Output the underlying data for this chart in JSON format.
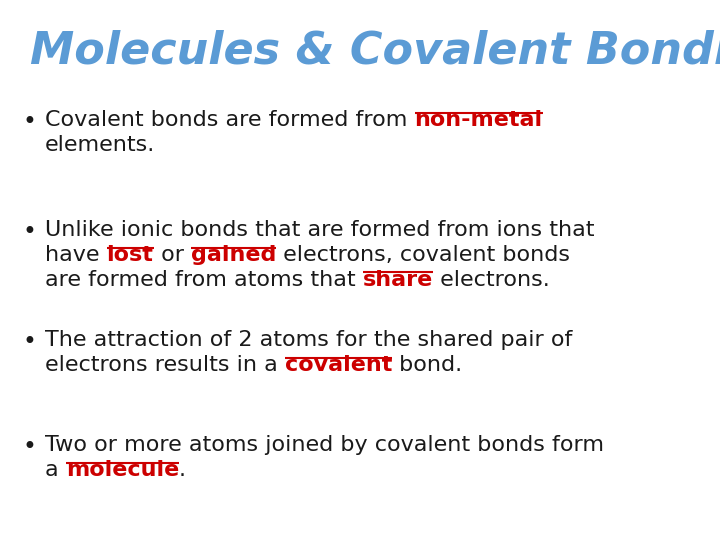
{
  "title": "Molecules & Covalent Bonding",
  "title_color": "#5B9BD5",
  "title_fontsize": 32,
  "background_color": "#ffffff",
  "bullet_color": "#1a1a1a",
  "body_fontsize": 16,
  "bullets": [
    {
      "segments": [
        {
          "text": "Covalent bonds are formed from ",
          "bold": false,
          "underline": false,
          "color": "#1a1a1a"
        },
        {
          "text": "non-metal",
          "bold": true,
          "underline": true,
          "color": "#cc0000"
        },
        {
          "text": "\nelements.",
          "bold": false,
          "underline": false,
          "color": "#1a1a1a"
        }
      ]
    },
    {
      "segments": [
        {
          "text": "Unlike ionic bonds that are formed from ions that\nhave ",
          "bold": false,
          "underline": false,
          "color": "#1a1a1a"
        },
        {
          "text": "lost",
          "bold": true,
          "underline": true,
          "color": "#cc0000"
        },
        {
          "text": " or ",
          "bold": false,
          "underline": false,
          "color": "#1a1a1a"
        },
        {
          "text": "gained",
          "bold": true,
          "underline": true,
          "color": "#cc0000"
        },
        {
          "text": " electrons, covalent bonds\nare formed from atoms that ",
          "bold": false,
          "underline": false,
          "color": "#1a1a1a"
        },
        {
          "text": "share",
          "bold": true,
          "underline": true,
          "color": "#cc0000"
        },
        {
          "text": " electrons.",
          "bold": false,
          "underline": false,
          "color": "#1a1a1a"
        }
      ]
    },
    {
      "segments": [
        {
          "text": "The attraction of 2 atoms for the shared pair of\nelectrons results in a ",
          "bold": false,
          "underline": false,
          "color": "#1a1a1a"
        },
        {
          "text": "covalent",
          "bold": true,
          "underline": true,
          "color": "#cc0000"
        },
        {
          "text": " bond.",
          "bold": false,
          "underline": false,
          "color": "#1a1a1a"
        }
      ]
    },
    {
      "segments": [
        {
          "text": "Two or more atoms joined by covalent bonds form\na ",
          "bold": false,
          "underline": false,
          "color": "#1a1a1a"
        },
        {
          "text": "molecule",
          "bold": true,
          "underline": true,
          "color": "#cc0000"
        },
        {
          "text": ".",
          "bold": false,
          "underline": false,
          "color": "#1a1a1a"
        }
      ]
    }
  ]
}
